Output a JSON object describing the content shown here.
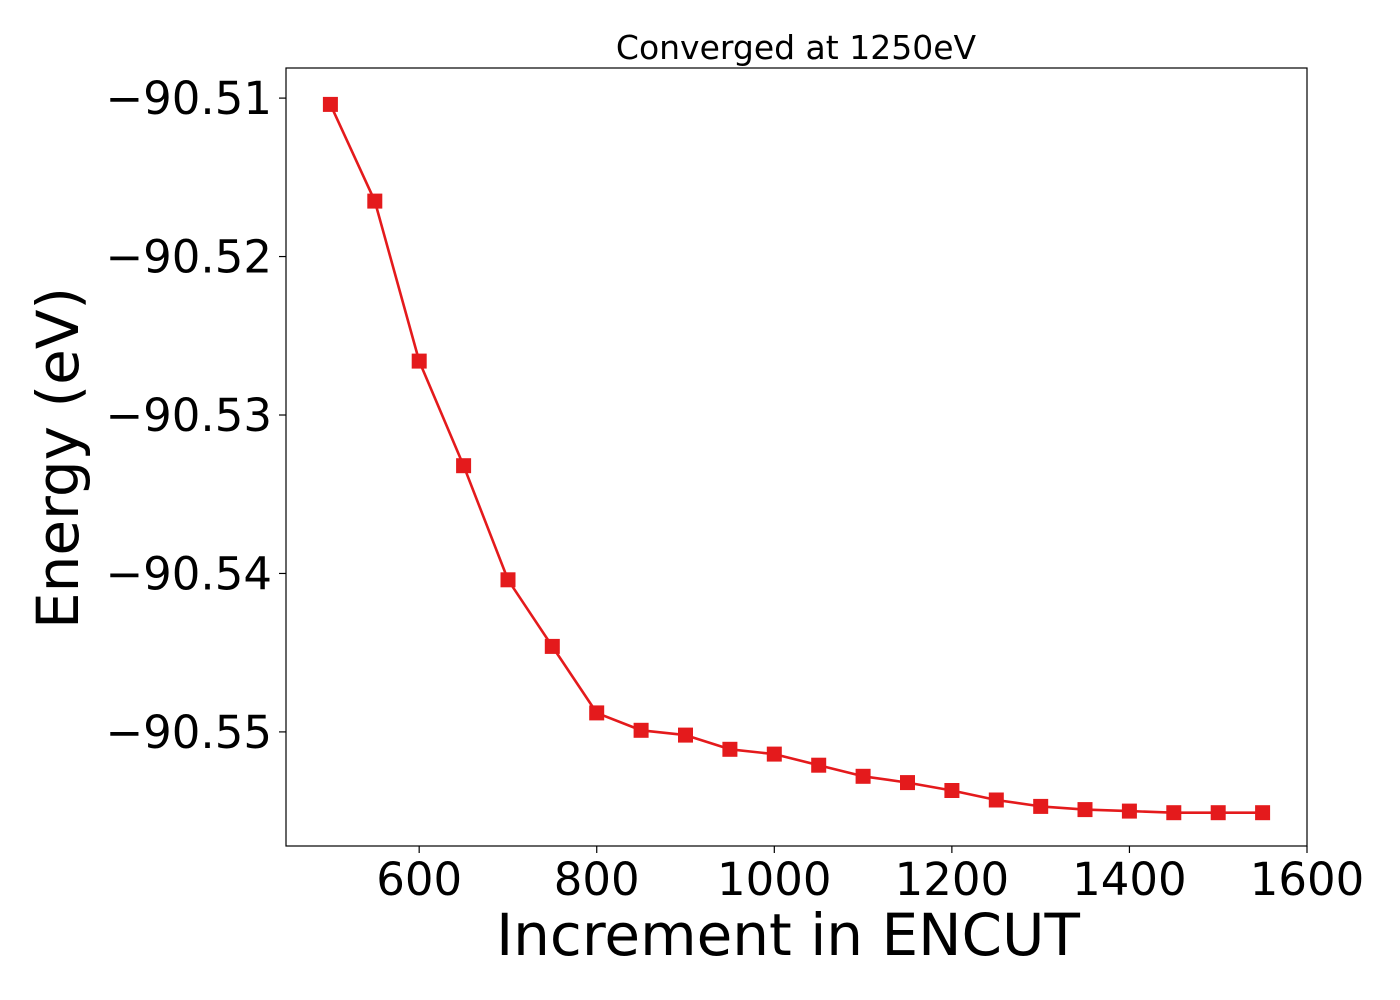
{
  "colors": {
    "series": "#e41a1c",
    "axes": "#000000",
    "background": "#ffffff"
  },
  "chart_data": {
    "type": "line",
    "title": "Converged at 1250eV",
    "xlabel": "Increment in ENCUT",
    "ylabel": "Energy (eV)",
    "xlim": [
      450,
      1600
    ],
    "ylim": [
      -90.5572,
      -90.5081
    ],
    "xticks": [
      600,
      800,
      1000,
      1200,
      1400,
      1600
    ],
    "xtick_labels": [
      "600",
      "800",
      "1000",
      "1200",
      "1400",
      "1600"
    ],
    "yticks": [
      -90.51,
      -90.52,
      -90.53,
      -90.54,
      -90.55
    ],
    "ytick_labels": [
      "−90.51",
      "−90.52",
      "−90.53",
      "−90.54",
      "−90.55"
    ],
    "grid": false,
    "marker": "square",
    "series": [
      {
        "x": [
          500,
          550,
          600,
          650,
          700,
          750,
          800,
          850,
          900,
          950,
          1000,
          1050,
          1100,
          1150,
          1200,
          1250,
          1300,
          1350,
          1400,
          1450,
          1500,
          1550
        ],
        "y": [
          -90.5104,
          -90.5165,
          -90.5266,
          -90.5332,
          -90.5404,
          -90.5446,
          -90.5488,
          -90.5499,
          -90.5502,
          -90.5511,
          -90.5514,
          -90.5521,
          -90.5528,
          -90.5532,
          -90.5537,
          -90.5543,
          -90.5547,
          -90.5549,
          -90.555,
          -90.5551,
          -90.5551,
          -90.5551
        ]
      }
    ]
  }
}
